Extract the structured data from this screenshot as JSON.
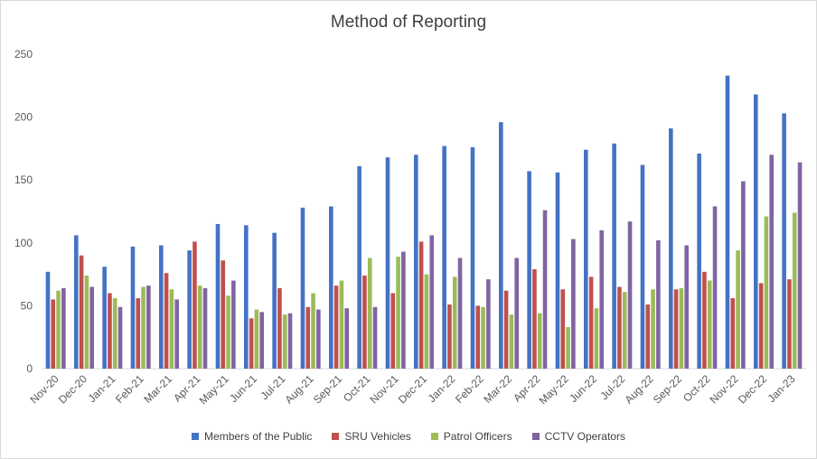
{
  "chart_data": {
    "type": "bar",
    "title": "Method of Reporting",
    "xlabel": "",
    "ylabel": "",
    "ylim": [
      0,
      250
    ],
    "yticks": [
      0,
      50,
      100,
      150,
      200,
      250
    ],
    "grid": false,
    "legend_position": "bottom",
    "categories": [
      "Nov-20",
      "Dec-20",
      "Jan-21",
      "Feb-21",
      "Mar-21",
      "Apr-21",
      "May-21",
      "Jun-21",
      "Jul-21",
      "Aug-21",
      "Sep-21",
      "Oct-21",
      "Nov-21",
      "Dec-21",
      "Jan-22",
      "Feb-22",
      "Mar-22",
      "Apr-22",
      "May-22",
      "Jun-22",
      "Jul-22",
      "Aug-22",
      "Sep-22",
      "Oct-22",
      "Nov-22",
      "Dec-22",
      "Jan-23"
    ],
    "series": [
      {
        "name": "Members of the Public",
        "color": "#4472c4",
        "values": [
          77,
          106,
          81,
          97,
          98,
          94,
          115,
          114,
          108,
          128,
          129,
          161,
          168,
          170,
          177,
          176,
          196,
          157,
          156,
          174,
          179,
          162,
          191,
          171,
          233,
          218,
          203
        ]
      },
      {
        "name": "SRU Vehicles",
        "color": "#c0504d",
        "values": [
          55,
          90,
          60,
          56,
          76,
          101,
          86,
          40,
          64,
          49,
          66,
          74,
          60,
          101,
          51,
          50,
          62,
          79,
          63,
          73,
          65,
          51,
          63,
          77,
          56,
          68,
          71
        ]
      },
      {
        "name": "Patrol Officers",
        "color": "#9bbb59",
        "values": [
          62,
          74,
          56,
          65,
          63,
          66,
          58,
          47,
          43,
          60,
          70,
          88,
          89,
          75,
          73,
          49,
          43,
          44,
          33,
          48,
          61,
          63,
          64,
          70,
          94,
          121,
          124
        ]
      },
      {
        "name": "CCTV Operators",
        "color": "#8064a2",
        "values": [
          64,
          65,
          49,
          66,
          55,
          64,
          70,
          45,
          44,
          47,
          48,
          49,
          93,
          106,
          88,
          71,
          88,
          126,
          103,
          110,
          117,
          102,
          98,
          129,
          149,
          170,
          164
        ]
      }
    ]
  }
}
